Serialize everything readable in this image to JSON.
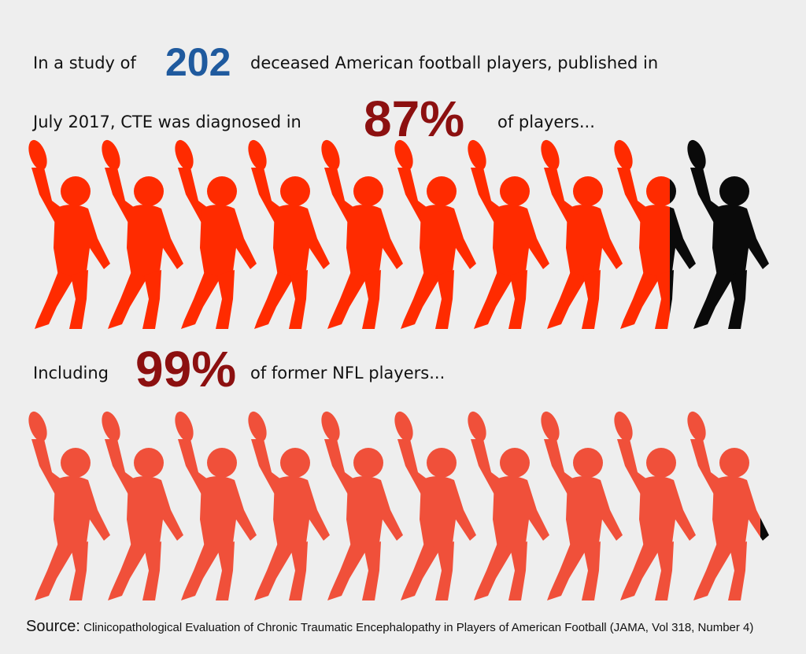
{
  "intro": {
    "before": "In a study of",
    "count": 202,
    "after": "deceased American football players, published in"
  },
  "diagnosis": {
    "before": "July 2017, CTE was diagnosed in",
    "after": "of players..."
  },
  "nfl": {
    "before": "Including",
    "after": "of former NFL players..."
  },
  "chart_data": [
    {
      "type": "pictograph",
      "values": [
        87
      ],
      "value_labels": [
        "87%"
      ],
      "color": "#ff2b00",
      "rest_color": "#0a0a0a"
    },
    {
      "type": "pictograph",
      "values": [
        99
      ],
      "value_labels": [
        "99%"
      ],
      "color": "#f0503a",
      "rest_color": "#0a0a0a"
    }
  ],
  "source": {
    "label": "Source:",
    "text": "Clinicopathological Evaluation of Chronic Traumatic Encephalopathy in Players of American Football (JAMA, Vol 318, Number 4)"
  }
}
